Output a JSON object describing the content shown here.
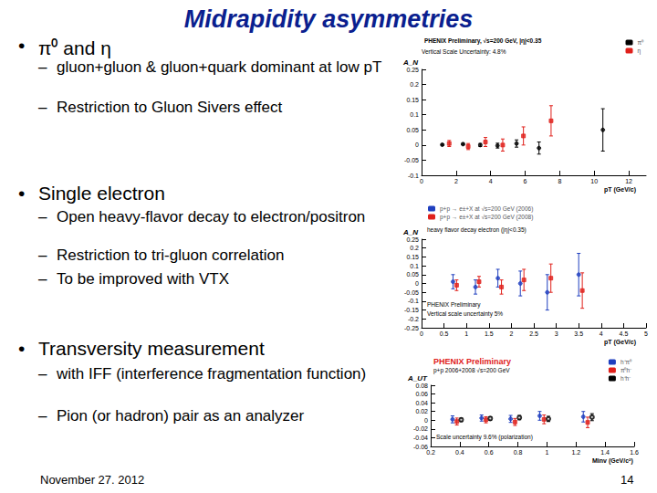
{
  "title": "Midrapidity asymmetries",
  "bullets": [
    {
      "text": "π⁰ and η",
      "items": [
        "gluon+gluon & gluon+quark dominant at low pT",
        "Restriction to Gluon Sivers effect"
      ]
    },
    {
      "text": "Single electron",
      "items": [
        "Open heavy-flavor decay to electron/positron",
        "Restriction to tri-gluon correlation",
        "To be improved with VTX"
      ]
    },
    {
      "text": "Transversity measurement",
      "items": [
        "with IFF (interference fragmentation function)",
        "Pion (or hadron) pair as an analyzer"
      ]
    }
  ],
  "footer": "November 27. 2012",
  "page": "14",
  "chart_data": [
    {
      "type": "scatter",
      "title": "PHENIX Preliminary, √s=200 GeV, |η|<0.35",
      "annotations": [
        "Vertical Scale Uncertainty: 4.8%"
      ],
      "x_label": "pT (GeV/c)",
      "y_label": "A_N",
      "xlim": [
        0,
        13
      ],
      "xticks": [
        0,
        2,
        4,
        6,
        8,
        10,
        12
      ],
      "ylim": [
        -0.1,
        0.25
      ],
      "yticks": [
        -0.1,
        -0.05,
        0,
        0.05,
        0.1,
        0.15,
        0.2,
        0.25
      ],
      "legend": "top-right",
      "grid": false,
      "series": [
        {
          "name": "π⁰",
          "color": "#000000",
          "marker": "circle",
          "x": [
            1.2,
            2.4,
            3.4,
            4.4,
            5.5,
            6.8,
            10.5
          ],
          "values": [
            0.001,
            0.003,
            0.0,
            -0.002,
            0.005,
            -0.01,
            0.05
          ],
          "errors": [
            0.002,
            0.003,
            0.005,
            0.008,
            0.012,
            0.02,
            0.07
          ]
        },
        {
          "name": "η",
          "color": "#e0201b",
          "marker": "square",
          "x": [
            1.6,
            2.7,
            3.7,
            4.7,
            5.9,
            7.5
          ],
          "values": [
            0.005,
            -0.005,
            0.01,
            0.0,
            0.03,
            0.08
          ],
          "errors": [
            0.01,
            0.01,
            0.015,
            0.02,
            0.03,
            0.05
          ]
        }
      ]
    },
    {
      "type": "scatter",
      "annotations": [
        "heavy flavor decay electron (|η|<0.35)",
        "PHENIX Preliminary",
        "Vertical scale uncertainty 5%"
      ],
      "x_label": "pT (GeV/c)",
      "y_label": "A_N",
      "xlim": [
        0,
        5
      ],
      "xticks": [
        0,
        0.5,
        1,
        1.5,
        2,
        2.5,
        3,
        3.5,
        4,
        4.5,
        5
      ],
      "ylim": [
        -0.25,
        0.25
      ],
      "yticks": [
        -0.25,
        -0.2,
        -0.15,
        -0.1,
        -0.05,
        0,
        0.05,
        0.1,
        0.15,
        0.2,
        0.25
      ],
      "legend": "top-left",
      "grid": false,
      "series": [
        {
          "name": "p+p → e±+X at √s=200 GeV (2006)",
          "color": "#1f3fbf",
          "marker": "circle",
          "x": [
            0.7,
            1.2,
            1.7,
            2.2,
            2.8,
            3.5
          ],
          "values": [
            0.01,
            -0.02,
            0.03,
            0.0,
            -0.05,
            0.05
          ],
          "errors": [
            0.04,
            0.04,
            0.05,
            0.07,
            0.1,
            0.12
          ]
        },
        {
          "name": "p+p → e±+X at √s=200 GeV (2008)",
          "color": "#e0201b",
          "marker": "square",
          "x": [
            0.78,
            1.28,
            1.78,
            2.28,
            2.88,
            3.58
          ],
          "values": [
            -0.01,
            0.01,
            -0.02,
            0.02,
            0.03,
            -0.04
          ],
          "errors": [
            0.03,
            0.03,
            0.04,
            0.06,
            0.08,
            0.1
          ]
        }
      ]
    },
    {
      "type": "scatter",
      "title": "PHENIX Preliminary",
      "subtitle": "p+p 2006+2008 √s=200 GeV",
      "annotations": [
        "Scale uncertainty 9.6% (polarization)"
      ],
      "x_label": "Minv (GeV/c²)",
      "y_label": "A_UT",
      "xlim": [
        0.2,
        1.6
      ],
      "xticks": [
        0.2,
        0.4,
        0.6,
        0.8,
        1,
        1.2,
        1.4,
        1.6
      ],
      "ylim": [
        -0.06,
        0.08
      ],
      "yticks": [
        -0.06,
        -0.04,
        -0.02,
        0,
        0.02,
        0.04,
        0.06,
        0.08
      ],
      "legend": "top-right",
      "grid": false,
      "series": [
        {
          "name": "h⁺π⁰",
          "color": "#1f3fbf",
          "marker": "circle",
          "x": [
            0.35,
            0.55,
            0.75,
            0.95,
            1.25
          ],
          "values": [
            0.002,
            0.005,
            0.003,
            0.01,
            0.008
          ],
          "errors": [
            0.008,
            0.007,
            0.008,
            0.01,
            0.012
          ]
        },
        {
          "name": "π⁰h⁻",
          "color": "#e0201b",
          "marker": "square",
          "x": [
            0.38,
            0.58,
            0.78,
            0.98,
            1.28
          ],
          "values": [
            -0.003,
            0.001,
            -0.004,
            0.002,
            -0.005
          ],
          "errors": [
            0.008,
            0.007,
            0.008,
            0.01,
            0.012
          ]
        },
        {
          "name": "h⁺h⁻",
          "color": "#000000",
          "marker": "emptyCircle",
          "x": [
            0.41,
            0.61,
            0.81,
            1.01,
            1.31
          ],
          "values": [
            0.001,
            0.004,
            0.006,
            0.003,
            0.007
          ],
          "errors": [
            0.004,
            0.004,
            0.005,
            0.006,
            0.008
          ]
        }
      ]
    }
  ]
}
